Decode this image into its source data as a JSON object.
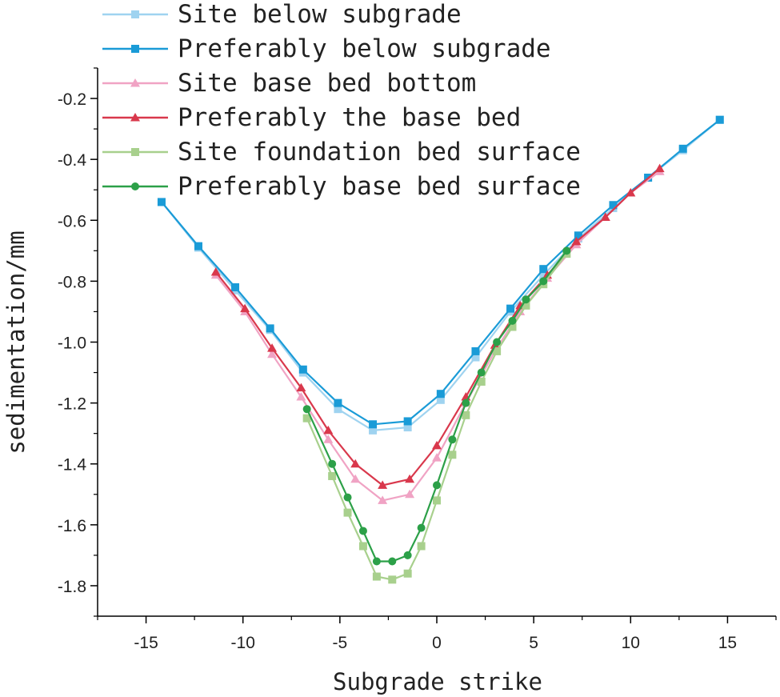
{
  "chart_data": {
    "type": "line",
    "title": "",
    "xlabel": "Subgrade strike",
    "ylabel": "sedimentation/mm",
    "xlim": [
      -17.5,
      17.5
    ],
    "ylim": [
      -1.9,
      -0.1
    ],
    "xticks": [
      -15,
      -10,
      -5,
      0,
      5,
      10,
      15
    ],
    "yticks": [
      -1.8,
      -1.6,
      -1.4,
      -1.2,
      -1.0,
      -0.8,
      -0.6,
      -0.4,
      -0.2
    ],
    "ytick_labels": [
      "-1.8",
      "-1.6",
      "-1.4",
      "-1.2",
      "-1.0",
      "-0.8",
      "-0.6",
      "-0.4",
      "-0.2"
    ],
    "grid": false,
    "legend_position": "top-left",
    "series": [
      {
        "name": "Site below subgrade",
        "color": "#9fd3f0",
        "marker": "square",
        "x": [
          -14.2,
          -12.3,
          -10.4,
          -8.6,
          -6.9,
          -5.1,
          -3.3,
          -1.5,
          0.2,
          2.0,
          3.8,
          5.5,
          7.3,
          9.1,
          10.9,
          12.7,
          14.6
        ],
        "y": [
          -0.54,
          -0.69,
          -0.83,
          -0.96,
          -1.1,
          -1.22,
          -1.29,
          -1.28,
          -1.19,
          -1.05,
          -0.9,
          -0.78,
          -0.66,
          -0.56,
          -0.46,
          -0.37,
          -0.27
        ]
      },
      {
        "name": "Preferably below subgrade",
        "color": "#1a9bd7",
        "marker": "square",
        "x": [
          -14.2,
          -12.3,
          -10.4,
          -8.6,
          -6.9,
          -5.1,
          -3.3,
          -1.5,
          0.2,
          2.0,
          3.8,
          5.5,
          7.3,
          9.1,
          10.9,
          12.7,
          14.6
        ],
        "y": [
          -0.54,
          -0.685,
          -0.82,
          -0.955,
          -1.09,
          -1.2,
          -1.27,
          -1.26,
          -1.17,
          -1.03,
          -0.89,
          -0.76,
          -0.65,
          -0.55,
          -0.46,
          -0.365,
          -0.27
        ]
      },
      {
        "name": "Site base bed bottom",
        "color": "#f0a3c4",
        "marker": "triangle",
        "x": [
          -11.4,
          -9.9,
          -8.5,
          -7.0,
          -5.6,
          -4.2,
          -2.8,
          -1.4,
          0.0,
          1.5,
          3.0,
          4.3,
          5.7,
          7.2,
          8.7,
          10.0,
          11.5
        ],
        "y": [
          -0.78,
          -0.9,
          -1.04,
          -1.18,
          -1.32,
          -1.45,
          -1.52,
          -1.5,
          -1.38,
          -1.2,
          -1.03,
          -0.9,
          -0.79,
          -0.68,
          -0.59,
          -0.51,
          -0.44
        ]
      },
      {
        "name": "Preferably the base bed",
        "color": "#d9384c",
        "marker": "triangle",
        "x": [
          -11.4,
          -9.9,
          -8.5,
          -7.0,
          -5.6,
          -4.2,
          -2.8,
          -1.4,
          0.0,
          1.5,
          3.0,
          4.3,
          5.7,
          7.2,
          8.7,
          10.0,
          11.5
        ],
        "y": [
          -0.77,
          -0.89,
          -1.02,
          -1.15,
          -1.29,
          -1.4,
          -1.47,
          -1.45,
          -1.34,
          -1.18,
          -1.01,
          -0.88,
          -0.78,
          -0.67,
          -0.59,
          -0.51,
          -0.43
        ]
      },
      {
        "name": "Site foundation bed surface",
        "color": "#a8d08d",
        "marker": "square",
        "x": [
          -6.7,
          -5.4,
          -4.6,
          -3.8,
          -3.1,
          -2.3,
          -1.5,
          -0.8,
          0.0,
          0.8,
          1.5,
          2.3,
          3.1,
          3.9,
          4.6,
          5.5,
          6.7
        ],
        "y": [
          -1.25,
          -1.44,
          -1.56,
          -1.67,
          -1.77,
          -1.78,
          -1.76,
          -1.67,
          -1.52,
          -1.37,
          -1.24,
          -1.13,
          -1.03,
          -0.95,
          -0.88,
          -0.81,
          -0.71
        ]
      },
      {
        "name": "Preferably base bed surface",
        "color": "#2ca048",
        "marker": "circle",
        "x": [
          -6.7,
          -5.4,
          -4.6,
          -3.8,
          -3.1,
          -2.3,
          -1.5,
          -0.8,
          0.0,
          0.8,
          1.5,
          2.3,
          3.1,
          3.9,
          4.6,
          5.5,
          6.7
        ],
        "y": [
          -1.22,
          -1.4,
          -1.51,
          -1.62,
          -1.72,
          -1.72,
          -1.7,
          -1.61,
          -1.47,
          -1.32,
          -1.2,
          -1.1,
          -1.0,
          -0.93,
          -0.86,
          -0.8,
          -0.7
        ]
      }
    ]
  }
}
